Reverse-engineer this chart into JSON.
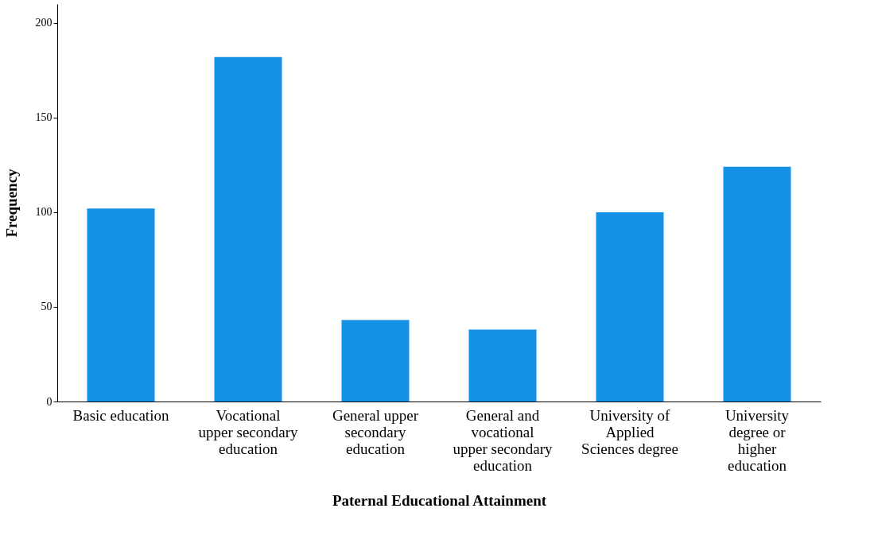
{
  "chart_data": {
    "type": "bar",
    "xlabel": "Paternal Educational Attainment",
    "ylabel": "Frequency",
    "categories": [
      "Basic education",
      "Vocational upper secondary education",
      "General upper secondary education",
      "General and vocational upper secondary education",
      "University of Applied Sciences degree",
      "University degree or higher education"
    ],
    "values": [
      102,
      182,
      43,
      38,
      100,
      124
    ],
    "color": "#1591e6",
    "ylim": [
      0,
      210
    ],
    "yticks": [
      0,
      50,
      100,
      150,
      200
    ],
    "grid": false
  }
}
